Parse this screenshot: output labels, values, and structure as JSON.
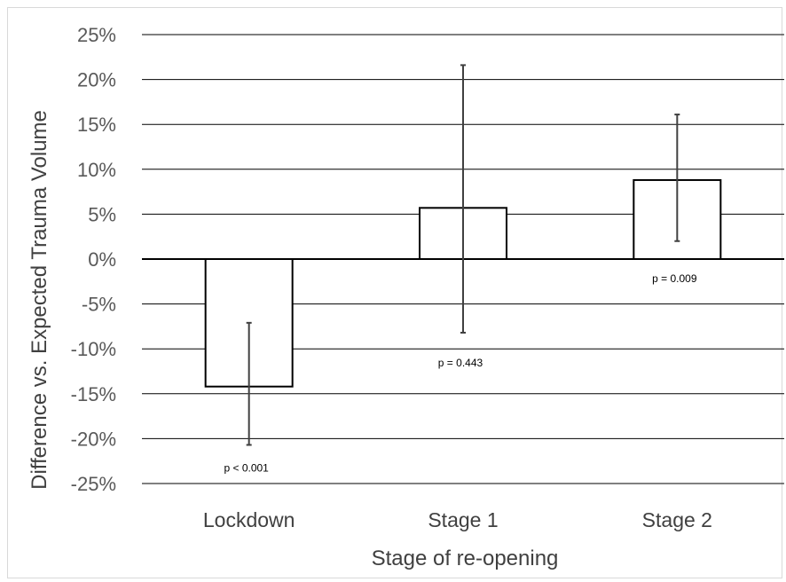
{
  "chart_data": {
    "type": "bar",
    "title": "",
    "xlabel": "Stage of re-opening",
    "ylabel": "Difference vs. Expected Trauma Volume",
    "ylim": [
      -25,
      25
    ],
    "ytick_step": 5,
    "ytick_labels": [
      "25%",
      "20%",
      "15%",
      "10%",
      "5%",
      "0%",
      "-5%",
      "-10%",
      "-15%",
      "-20%",
      "-25%"
    ],
    "grid": true,
    "categories": [
      "Lockdown",
      "Stage 1",
      "Stage 2"
    ],
    "values": [
      -14.2,
      5.7,
      8.8
    ],
    "error_low": [
      -20.7,
      -8.2,
      2.0
    ],
    "error_high": [
      -7.1,
      21.6,
      16.1
    ],
    "annotations": [
      "p < 0.001",
      "p = 0.443",
      "p = 0.009"
    ],
    "colors": {
      "bar_fill": "#ffffff",
      "bar_edge": "#000000",
      "error_bar": "#404040",
      "grid": "#000000",
      "text": "#404040"
    }
  }
}
